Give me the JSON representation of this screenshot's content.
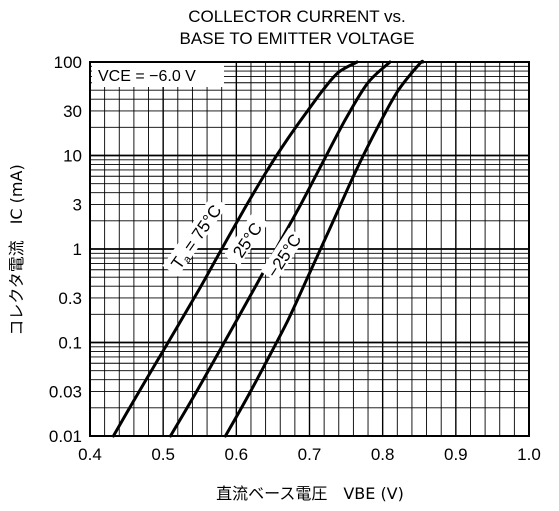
{
  "chart_data": {
    "type": "line",
    "title": "COLLECTOR CURRENT vs.\nBASE TO EMITTER VOLTAGE",
    "title_lines": [
      "COLLECTOR CURRENT vs.",
      "BASE TO EMITTER VOLTAGE"
    ],
    "condition": "VCE = −6.0 V",
    "xlabel": "直流ベース電圧　VBE  (V)",
    "ylabel": "コレクタ電流　IC  (mA)",
    "x_scale": "linear",
    "y_scale": "log",
    "xlim": [
      0.4,
      1.0
    ],
    "ylim": [
      0.01,
      100
    ],
    "x_ticks": [
      0.4,
      0.5,
      0.6,
      0.7,
      0.8,
      0.9,
      1.0
    ],
    "x_tick_labels": [
      "0.4",
      "0.5",
      "0.6",
      "0.7",
      "0.8",
      "0.9",
      "1.0"
    ],
    "y_ticks": [
      0.01,
      0.03,
      0.1,
      0.3,
      1,
      3,
      10,
      30,
      100
    ],
    "y_tick_labels": [
      "0.01",
      "0.03",
      "0.1",
      "0.3",
      "1",
      "3",
      "10",
      "30",
      "100"
    ],
    "grid": true,
    "series": [
      {
        "name": "Ta = 75°C",
        "x": [
          0.432,
          0.46,
          0.49,
          0.52,
          0.55,
          0.58,
          0.61,
          0.64,
          0.67,
          0.7,
          0.72,
          0.74,
          0.765
        ],
        "y": [
          0.01,
          0.024,
          0.06,
          0.15,
          0.38,
          1.0,
          2.6,
          6.5,
          15,
          32,
          52,
          78,
          100
        ]
      },
      {
        "name": "25°C",
        "x": [
          0.51,
          0.54,
          0.57,
          0.6,
          0.63,
          0.66,
          0.69,
          0.72,
          0.75,
          0.78,
          0.81
        ],
        "y": [
          0.01,
          0.025,
          0.065,
          0.17,
          0.45,
          1.2,
          3.2,
          9,
          25,
          60,
          100
        ]
      },
      {
        "name": "−25°C",
        "x": [
          0.585,
          0.61,
          0.64,
          0.67,
          0.7,
          0.73,
          0.76,
          0.79,
          0.82,
          0.85,
          0.855
        ],
        "y": [
          0.01,
          0.022,
          0.06,
          0.17,
          0.55,
          1.8,
          6,
          18,
          48,
          95,
          100
        ]
      }
    ],
    "curve_labels": [
      {
        "series": "Ta = 75°C",
        "text_main": "T",
        "text_sub": "a",
        "text_rest": " = 75°C"
      },
      {
        "series": "25°C",
        "text": "25°C"
      },
      {
        "series": "−25°C",
        "text": "−25°C"
      }
    ]
  }
}
